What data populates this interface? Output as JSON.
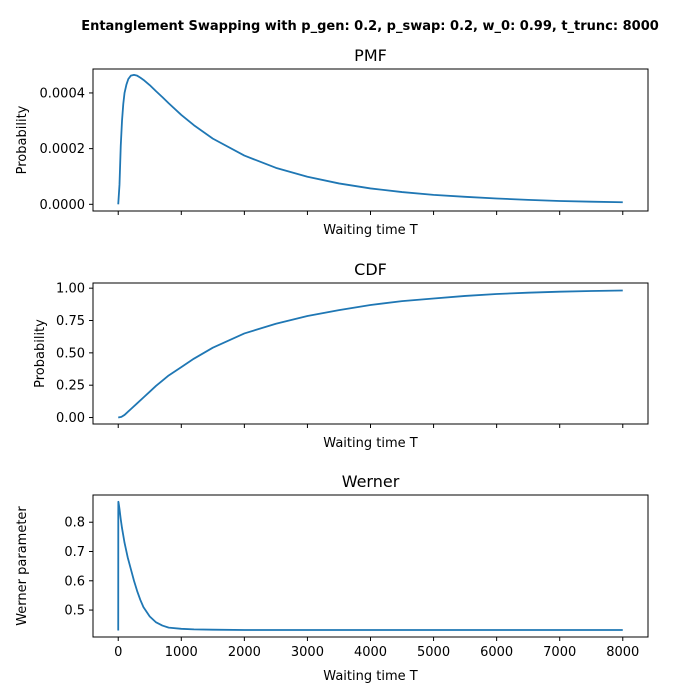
{
  "figure": {
    "suptitle": "Entanglement Swapping with p_gen: 0.2, p_swap: 0.2, w_0: 0.99, t_trunc: 8000"
  },
  "chart_data": [
    {
      "type": "line",
      "title": "PMF",
      "xlabel": "Waiting time T",
      "ylabel": "Probability",
      "xlim": [
        -400,
        8400
      ],
      "ylim": [
        -2.4e-05,
        0.000486
      ],
      "xticks": [
        0,
        1000,
        2000,
        3000,
        4000,
        5000,
        6000,
        7000,
        8000
      ],
      "show_xticklabels": false,
      "yticks": [
        0.0,
        0.0002,
        0.0004
      ],
      "yticklabels": [
        "0.0000",
        "0.0002",
        "0.0004"
      ],
      "grid": false,
      "color": "#1f77b4",
      "x": [
        0,
        20,
        40,
        60,
        80,
        100,
        130,
        160,
        200,
        250,
        300,
        350,
        400,
        500,
        600,
        700,
        800,
        1000,
        1200,
        1500,
        2000,
        2500,
        3000,
        3500,
        4000,
        4500,
        5000,
        5500,
        6000,
        6500,
        7000,
        7500,
        8000
      ],
      "y": [
        0.0,
        7e-05,
        0.00021,
        0.0003,
        0.00036,
        0.0004,
        0.00043,
        0.00045,
        0.000462,
        0.000465,
        0.000462,
        0.000455,
        0.000447,
        0.000428,
        0.000406,
        0.000385,
        0.000363,
        0.000321,
        0.000284,
        0.000236,
        0.000175,
        0.000131,
        9.9e-05,
        7.5e-05,
        5.7e-05,
        4.4e-05,
        3.4e-05,
        2.7e-05,
        2.1e-05,
        1.6e-05,
        1.2e-05,
        9.5e-06,
        7.5e-06
      ]
    },
    {
      "type": "line",
      "title": "CDF",
      "xlabel": "Waiting time T",
      "ylabel": "Probability",
      "xlim": [
        -400,
        8400
      ],
      "ylim": [
        -0.05,
        1.04
      ],
      "xticks": [
        0,
        1000,
        2000,
        3000,
        4000,
        5000,
        6000,
        7000,
        8000
      ],
      "show_xticklabels": false,
      "yticks": [
        0.0,
        0.25,
        0.5,
        0.75,
        1.0
      ],
      "yticklabels": [
        "0.00",
        "0.25",
        "0.50",
        "0.75",
        "1.00"
      ],
      "grid": false,
      "color": "#1f77b4",
      "x": [
        0,
        50,
        100,
        200,
        300,
        400,
        500,
        600,
        800,
        1000,
        1200,
        1500,
        2000,
        2500,
        3000,
        3500,
        4000,
        4500,
        5000,
        5500,
        6000,
        6500,
        7000,
        7500,
        8000
      ],
      "y": [
        0.0,
        0.005,
        0.02,
        0.065,
        0.11,
        0.155,
        0.2,
        0.245,
        0.325,
        0.39,
        0.455,
        0.54,
        0.65,
        0.725,
        0.785,
        0.83,
        0.87,
        0.9,
        0.92,
        0.94,
        0.955,
        0.965,
        0.973,
        0.978,
        0.982
      ]
    },
    {
      "type": "line",
      "title": "Werner",
      "xlabel": "Waiting time T",
      "ylabel": "Werner parameter",
      "xlim": [
        -400,
        8400
      ],
      "ylim": [
        0.408,
        0.893
      ],
      "xticks": [
        0,
        1000,
        2000,
        3000,
        4000,
        5000,
        6000,
        7000,
        8000
      ],
      "xticklabels": [
        "0",
        "1000",
        "2000",
        "3000",
        "4000",
        "5000",
        "6000",
        "7000",
        "8000"
      ],
      "show_xticklabels": true,
      "yticks": [
        0.5,
        0.6,
        0.7,
        0.8
      ],
      "yticklabels": [
        "0.5",
        "0.6",
        "0.7",
        "0.8"
      ],
      "grid": false,
      "color": "#1f77b4",
      "x": [
        0,
        1,
        2,
        4,
        10,
        20,
        40,
        60,
        80,
        100,
        150,
        200,
        250,
        300,
        350,
        400,
        500,
        600,
        700,
        800,
        1000,
        1200,
        1500,
        2000,
        3000,
        4000,
        5000,
        6000,
        7000,
        8000
      ],
      "y": [
        0.43,
        0.83,
        0.87,
        0.868,
        0.86,
        0.845,
        0.81,
        0.78,
        0.755,
        0.73,
        0.68,
        0.64,
        0.6,
        0.565,
        0.535,
        0.51,
        0.478,
        0.458,
        0.447,
        0.44,
        0.436,
        0.434,
        0.433,
        0.432,
        0.432,
        0.432,
        0.432,
        0.432,
        0.432,
        0.432
      ]
    }
  ]
}
